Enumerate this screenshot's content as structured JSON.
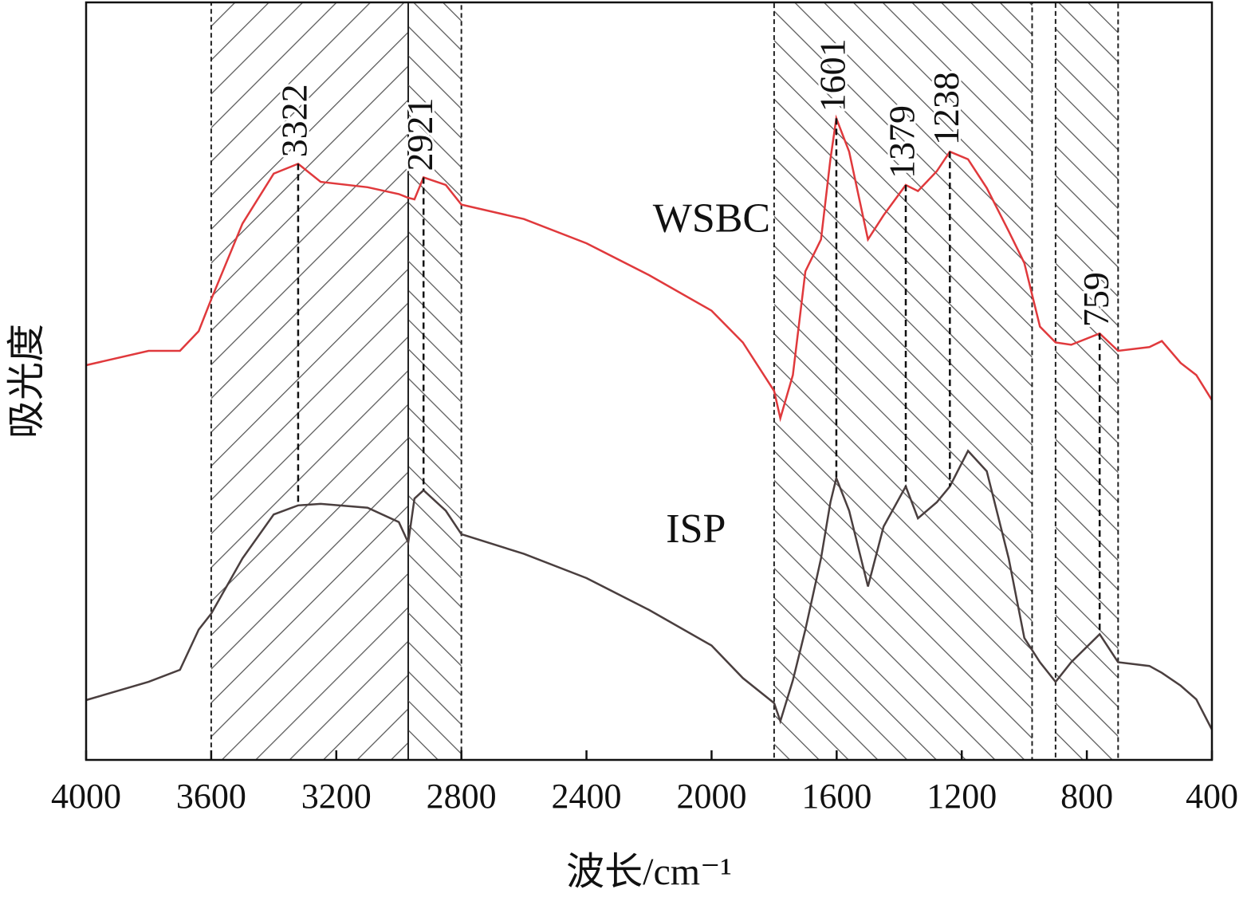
{
  "chart_data": {
    "type": "line",
    "x_label": "波长/cm⁻¹",
    "y_label": "吸光度",
    "xlim": [
      4000,
      400
    ],
    "ylim": [
      0,
      100
    ],
    "xticks": [
      4000,
      3600,
      3200,
      2800,
      2400,
      2000,
      1600,
      1200,
      800,
      400
    ],
    "x": [
      4000,
      3800,
      3700,
      3640,
      3600,
      3500,
      3400,
      3322,
      3250,
      3100,
      3000,
      2970,
      2950,
      2921,
      2850,
      2800,
      2600,
      2400,
      2200,
      2000,
      1900,
      1800,
      1780,
      1740,
      1700,
      1650,
      1620,
      1601,
      1560,
      1500,
      1450,
      1379,
      1340,
      1280,
      1238,
      1180,
      1120,
      1050,
      1000,
      950,
      900,
      850,
      759,
      700,
      600,
      560,
      500,
      450,
      400
    ],
    "series": [
      {
        "name": "WSBC",
        "color": "#e0393c",
        "values": [
          52.1,
          54,
          54,
          56.6,
          60.8,
          70.8,
          77.4,
          78.7,
          76.3,
          75.6,
          74.7,
          74.2,
          74,
          76.9,
          75.9,
          73.3,
          71.4,
          68.2,
          64,
          59.3,
          55.1,
          48.7,
          45.1,
          50.8,
          64.5,
          68.7,
          79.3,
          84.7,
          80.3,
          68.7,
          71.9,
          75.9,
          75.1,
          77.7,
          80.3,
          79.3,
          75.5,
          69.8,
          65.6,
          57.2,
          55.1,
          54.8,
          56.3,
          54,
          54.5,
          55.3,
          52.4,
          50.8,
          47.5
        ]
      },
      {
        "name": "ISP",
        "color": "#4a3f3f",
        "values": [
          7.9,
          10.3,
          11.9,
          17.2,
          19.3,
          26.6,
          32.4,
          33.6,
          33.8,
          33.3,
          31.4,
          28.7,
          34.5,
          35.6,
          32.9,
          29.8,
          27.2,
          24,
          19.8,
          15.1,
          10.8,
          7.5,
          5.1,
          10.5,
          17.2,
          26.6,
          34,
          37.2,
          32.9,
          22.9,
          30.8,
          36.1,
          31.9,
          34,
          36.1,
          40.8,
          38.1,
          26.6,
          16.1,
          12.9,
          10.3,
          12.9,
          16.6,
          12.9,
          12.4,
          11.5,
          9.8,
          8,
          4
        ]
      }
    ],
    "peaks": [
      3322,
      2921,
      1601,
      1379,
      1238,
      759
    ],
    "bands": [
      {
        "from": 3600,
        "to": 2970,
        "hatch": "\\"
      },
      {
        "from": 2970,
        "to": 2800,
        "hatch": "/"
      },
      {
        "from": 1800,
        "to": 975,
        "hatch": "/"
      },
      {
        "from": 900,
        "to": 700,
        "hatch": "/"
      }
    ]
  }
}
